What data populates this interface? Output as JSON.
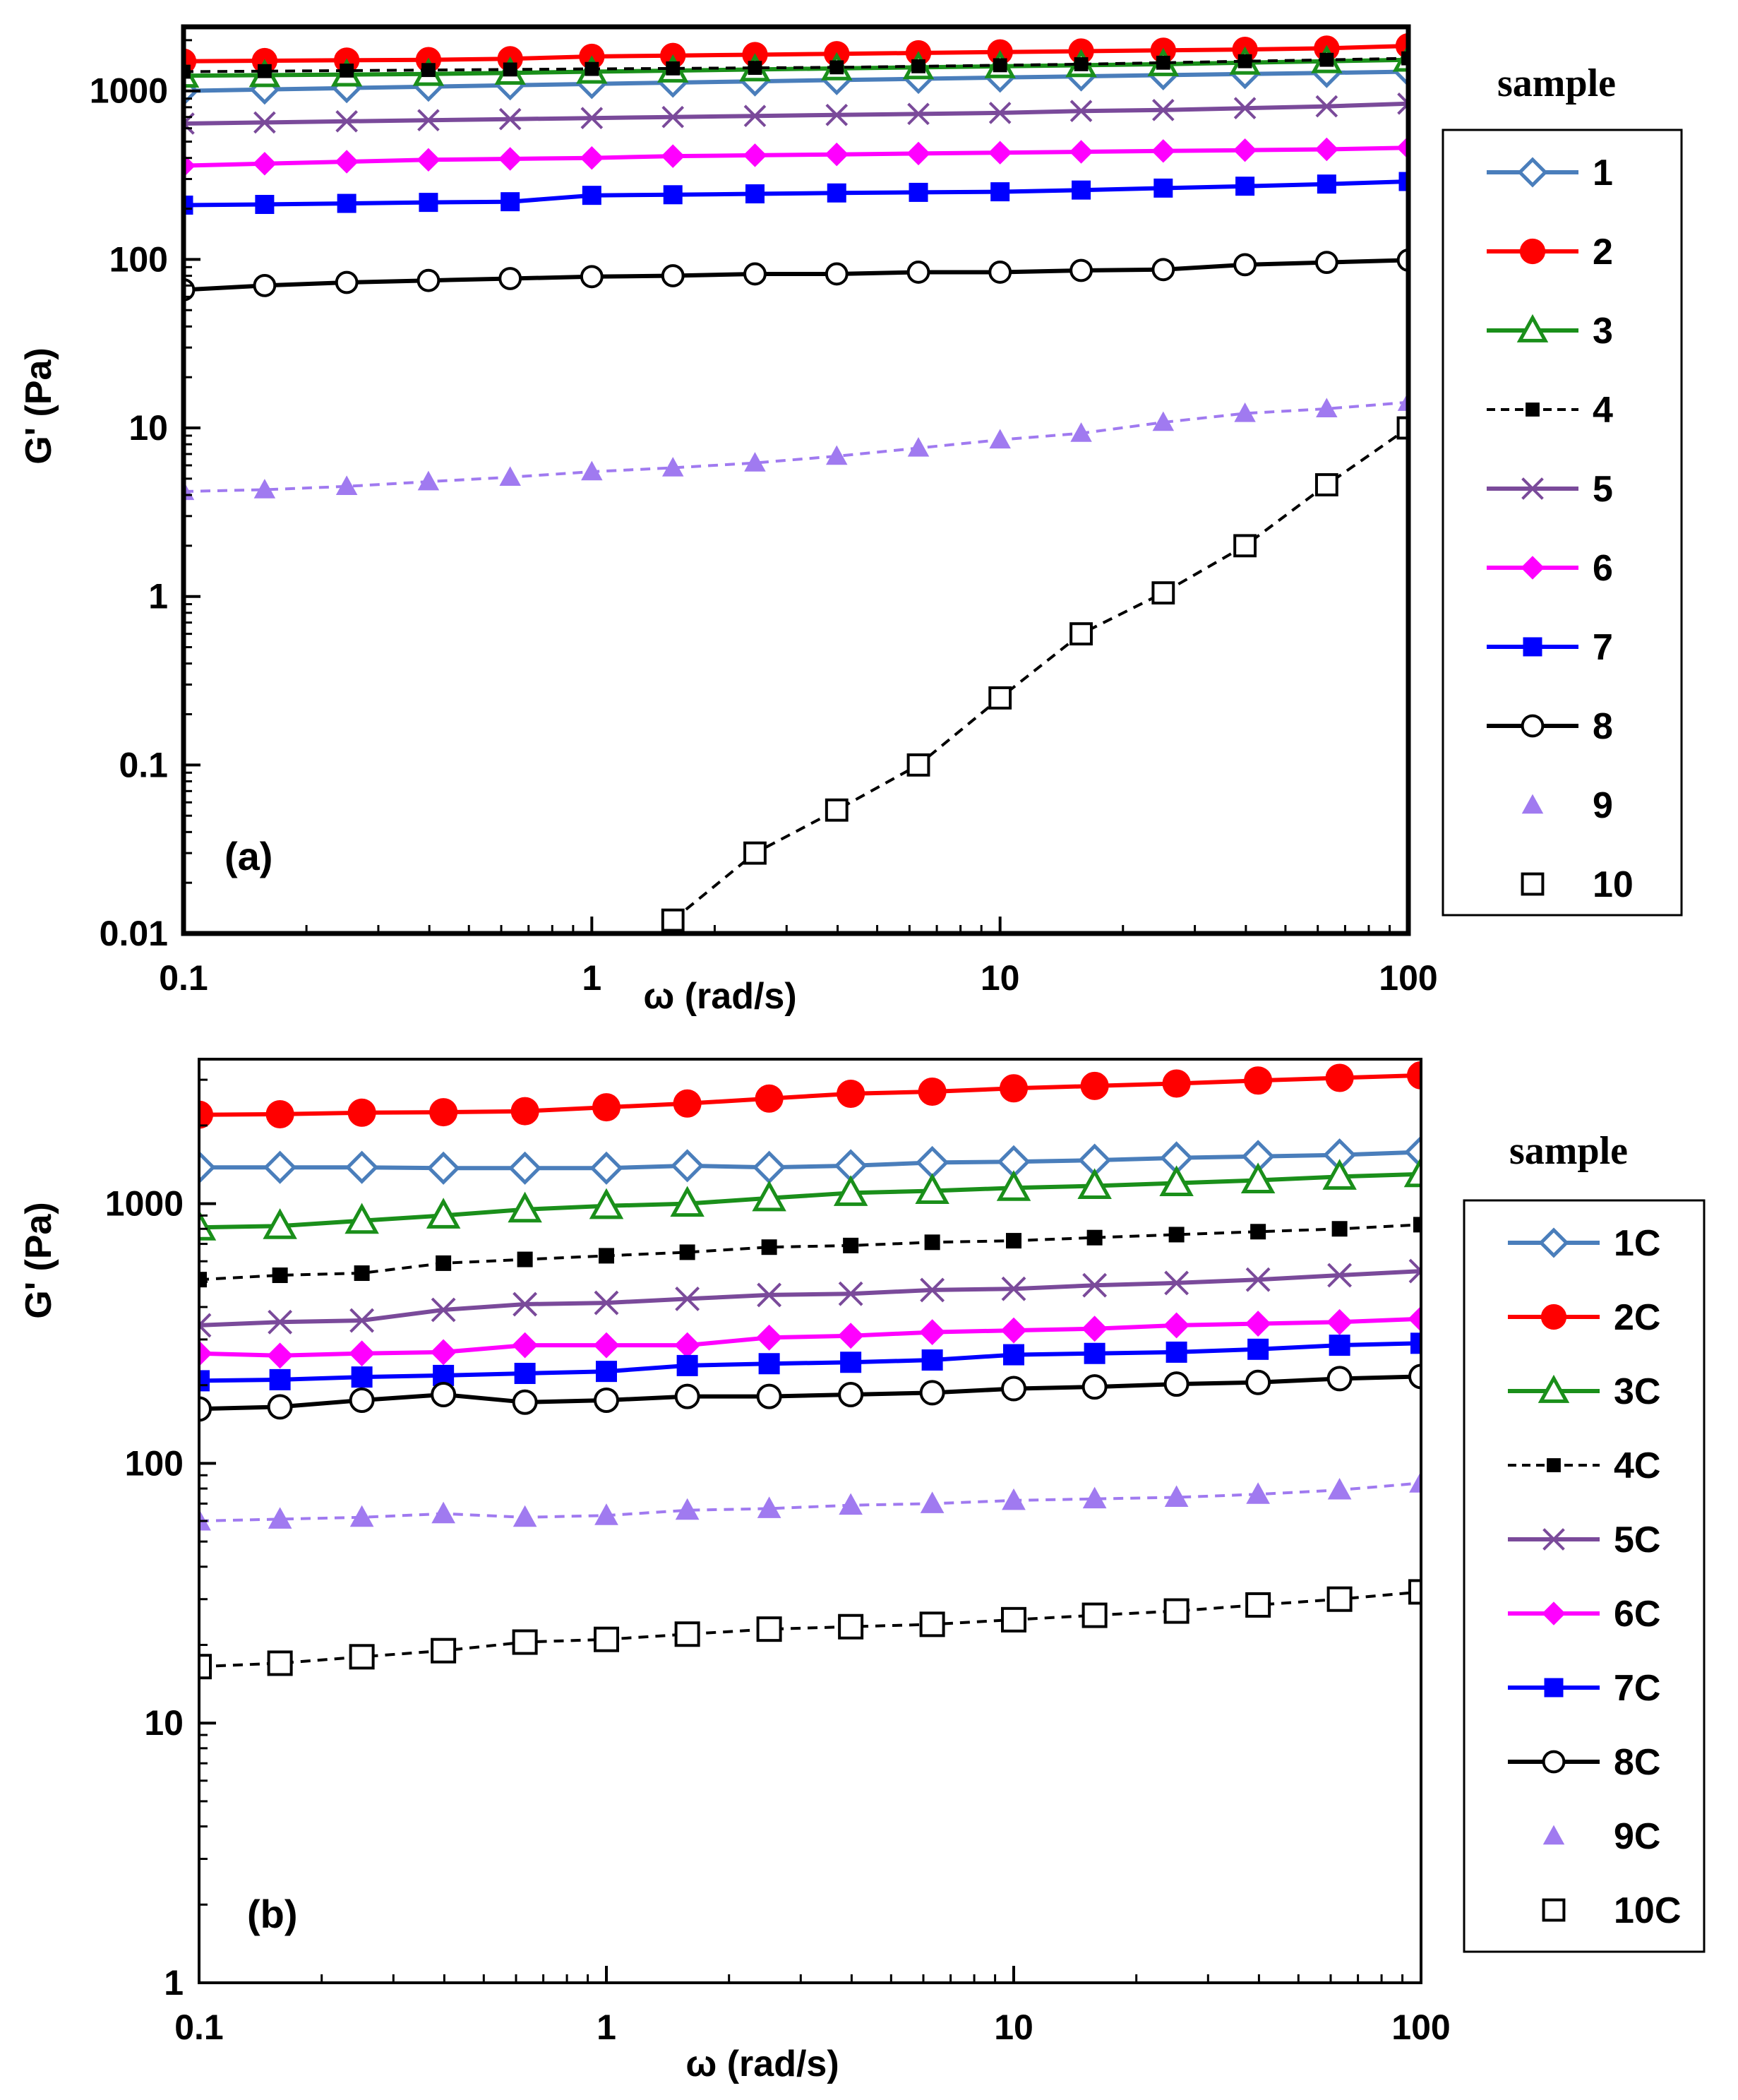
{
  "chart_data": [
    {
      "id": "a",
      "type": "line",
      "panel_label": "(a)",
      "xlabel": "ω (rad/s)",
      "ylabel": "G' (Pa)",
      "xscale": "log",
      "yscale": "log",
      "xlim": [
        0.1,
        100
      ],
      "ylim": [
        0.01,
        2400
      ],
      "x_ticks": [
        0.1,
        1,
        10,
        100
      ],
      "x_tick_labels": [
        "0.1",
        "1",
        "10",
        "100"
      ],
      "y_ticks": [
        0.01,
        0.1,
        1,
        10,
        100,
        1000
      ],
      "y_tick_labels": [
        "0.01",
        "0.1",
        "1",
        "10",
        "100",
        "1000"
      ],
      "legend_title": "sample",
      "legend_position": "right",
      "x": [
        0.1,
        0.158,
        0.251,
        0.398,
        0.631,
        1.0,
        1.58,
        2.51,
        3.98,
        6.31,
        10.0,
        15.8,
        25.1,
        39.8,
        63.1,
        100.0
      ],
      "series": [
        {
          "name": "1",
          "color": "#4a7ebb",
          "marker": "diamond-open",
          "line": "solid",
          "values": [
            1000,
            1020,
            1040,
            1060,
            1080,
            1100,
            1120,
            1140,
            1160,
            1180,
            1200,
            1220,
            1240,
            1260,
            1280,
            1300
          ]
        },
        {
          "name": "2",
          "color": "#ff0000",
          "marker": "circle-filled",
          "line": "solid",
          "values": [
            1500,
            1510,
            1520,
            1530,
            1550,
            1600,
            1620,
            1640,
            1660,
            1680,
            1700,
            1720,
            1740,
            1760,
            1790,
            1850
          ]
        },
        {
          "name": "3",
          "color": "#1a8f1a",
          "marker": "triangle-open",
          "line": "solid",
          "values": [
            1230,
            1240,
            1250,
            1260,
            1280,
            1300,
            1320,
            1340,
            1360,
            1380,
            1400,
            1420,
            1440,
            1470,
            1500,
            1530
          ]
        },
        {
          "name": "4",
          "color": "#000000",
          "marker": "square-filled-small",
          "line": "dashed",
          "values": [
            1300,
            1310,
            1320,
            1330,
            1340,
            1350,
            1360,
            1370,
            1380,
            1400,
            1420,
            1440,
            1470,
            1500,
            1530,
            1560
          ]
        },
        {
          "name": "5",
          "color": "#7a4a9a",
          "marker": "x",
          "line": "solid",
          "values": [
            640,
            650,
            660,
            670,
            680,
            690,
            700,
            710,
            720,
            730,
            740,
            760,
            770,
            790,
            810,
            840
          ]
        },
        {
          "name": "6",
          "color": "#ff00ff",
          "marker": "diamond-filled",
          "line": "solid",
          "values": [
            360,
            370,
            380,
            390,
            395,
            400,
            410,
            415,
            420,
            425,
            430,
            435,
            440,
            445,
            450,
            460
          ]
        },
        {
          "name": "7",
          "color": "#0000ff",
          "marker": "square-filled",
          "line": "solid",
          "values": [
            210,
            212,
            215,
            218,
            220,
            240,
            242,
            245,
            248,
            250,
            252,
            258,
            265,
            272,
            280,
            290
          ]
        },
        {
          "name": "8",
          "color": "#000000",
          "marker": "circle-open",
          "line": "solid",
          "values": [
            66,
            70,
            73,
            75,
            77,
            79,
            80,
            82,
            82,
            84,
            84,
            86,
            87,
            93,
            96,
            99
          ]
        },
        {
          "name": "9",
          "color": "#a07af0",
          "marker": "triangle-filled",
          "line": "dashed",
          "values": [
            4.2,
            4.3,
            4.5,
            4.8,
            5.1,
            5.5,
            5.8,
            6.2,
            6.8,
            7.6,
            8.5,
            9.3,
            10.8,
            12.2,
            13.0,
            14.2
          ]
        },
        {
          "name": "10",
          "color": "#000000",
          "marker": "square-open",
          "line": "dashed",
          "x": [
            1.58,
            2.51,
            3.98,
            6.31,
            10.0,
            15.8,
            25.1,
            39.8,
            63.1,
            100.0
          ],
          "values": [
            0.012,
            0.03,
            0.054,
            0.1,
            0.25,
            0.6,
            1.05,
            2.0,
            4.6,
            10.0
          ]
        }
      ]
    },
    {
      "id": "b",
      "type": "line",
      "panel_label": "(b)",
      "xlabel": "ω (rad/s)",
      "ylabel": "G' (Pa)",
      "xscale": "log",
      "yscale": "log",
      "xlim": [
        0.1,
        100
      ],
      "ylim": [
        1,
        3600
      ],
      "x_ticks": [
        0.1,
        1,
        10,
        100
      ],
      "x_tick_labels": [
        "0.1",
        "1",
        "10",
        "100"
      ],
      "y_ticks": [
        1,
        10,
        100,
        1000
      ],
      "y_tick_labels": [
        "1",
        "10",
        "100",
        "1000"
      ],
      "legend_title": "sample",
      "legend_position": "right",
      "x": [
        0.1,
        0.158,
        0.251,
        0.398,
        0.631,
        1.0,
        1.58,
        2.51,
        3.98,
        6.31,
        10.0,
        15.8,
        25.1,
        39.8,
        63.1,
        100.0
      ],
      "series": [
        {
          "name": "1C",
          "color": "#4a7ebb",
          "marker": "diamond-open",
          "line": "solid",
          "values": [
            1380,
            1380,
            1380,
            1370,
            1370,
            1370,
            1400,
            1380,
            1400,
            1440,
            1450,
            1470,
            1500,
            1520,
            1540,
            1580
          ]
        },
        {
          "name": "2C",
          "color": "#ff0000",
          "marker": "circle-filled",
          "line": "solid",
          "values": [
            2200,
            2210,
            2240,
            2250,
            2270,
            2350,
            2430,
            2540,
            2650,
            2700,
            2780,
            2840,
            2900,
            2980,
            3050,
            3120
          ]
        },
        {
          "name": "3C",
          "color": "#1a8f1a",
          "marker": "triangle-open",
          "line": "solid",
          "values": [
            810,
            820,
            860,
            900,
            950,
            980,
            1000,
            1050,
            1100,
            1120,
            1150,
            1170,
            1200,
            1230,
            1270,
            1300
          ]
        },
        {
          "name": "4C",
          "color": "#000000",
          "marker": "square-filled-small",
          "line": "dashed",
          "values": [
            510,
            530,
            540,
            590,
            610,
            630,
            650,
            680,
            690,
            710,
            720,
            740,
            760,
            780,
            800,
            830
          ]
        },
        {
          "name": "5C",
          "color": "#7a4a9a",
          "marker": "x",
          "line": "solid",
          "values": [
            340,
            350,
            355,
            390,
            410,
            415,
            430,
            445,
            450,
            465,
            470,
            485,
            495,
            510,
            530,
            550
          ]
        },
        {
          "name": "6C",
          "color": "#ff00ff",
          "marker": "diamond-filled",
          "line": "solid",
          "values": [
            265,
            260,
            265,
            268,
            285,
            285,
            285,
            305,
            310,
            320,
            325,
            330,
            340,
            345,
            350,
            360
          ]
        },
        {
          "name": "7C",
          "color": "#0000ff",
          "marker": "square-filled",
          "line": "solid",
          "values": [
            208,
            210,
            215,
            218,
            222,
            226,
            238,
            242,
            245,
            250,
            262,
            265,
            268,
            275,
            285,
            290
          ]
        },
        {
          "name": "8C",
          "color": "#000000",
          "marker": "circle-open",
          "line": "solid",
          "values": [
            162,
            165,
            175,
            184,
            172,
            175,
            181,
            181,
            184,
            187,
            194,
            197,
            202,
            205,
            212,
            216
          ]
        },
        {
          "name": "9C",
          "color": "#a07af0",
          "marker": "triangle-filled",
          "line": "dashed",
          "values": [
            60,
            61,
            62,
            64,
            62,
            63,
            66,
            67,
            69,
            70,
            72,
            73,
            74,
            76,
            79,
            84
          ]
        },
        {
          "name": "10C",
          "color": "#000000",
          "marker": "square-open",
          "line": "dashed",
          "values": [
            16.5,
            17.0,
            18.0,
            19.0,
            20.5,
            21.0,
            22.0,
            23.0,
            23.5,
            24.0,
            25.0,
            26.0,
            27.0,
            28.5,
            30.0,
            32.0
          ]
        }
      ]
    }
  ]
}
